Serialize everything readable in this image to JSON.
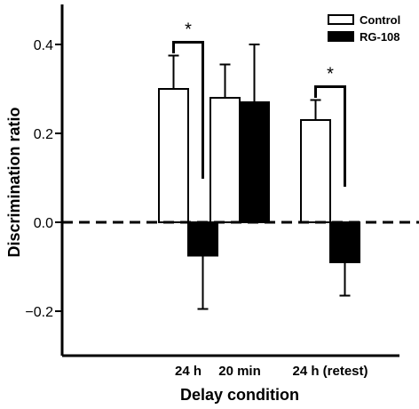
{
  "chart_data": {
    "type": "bar",
    "xlabel": "Delay condition",
    "ylabel": "Discrimination ratio",
    "categories": [
      "24 h",
      "20 min",
      "24 h (retest)"
    ],
    "series": [
      {
        "name": "Control",
        "values": [
          0.3,
          0.28,
          0.23
        ],
        "errors": [
          0.075,
          0.075,
          0.045
        ],
        "color": "#ffffff"
      },
      {
        "name": "RG-108",
        "values": [
          -0.075,
          0.27,
          -0.09
        ],
        "errors": [
          0.12,
          0.13,
          0.075
        ],
        "color": "#000000"
      }
    ],
    "yticks": [
      -0.2,
      0.0,
      0.2,
      0.4
    ],
    "ytick_labels": [
      "−0.2",
      "0.0",
      "0.2",
      "0.4"
    ],
    "ylim": [
      -0.29,
      0.49
    ],
    "reference_line": {
      "y": 0.0,
      "style": "dashed"
    },
    "significance": [
      {
        "category_index": 0,
        "label": "*"
      },
      {
        "category_index": 2,
        "label": "*"
      }
    ],
    "legend": {
      "position": "top-right",
      "entries": [
        "Control",
        "RG-108"
      ]
    },
    "grid": false
  }
}
